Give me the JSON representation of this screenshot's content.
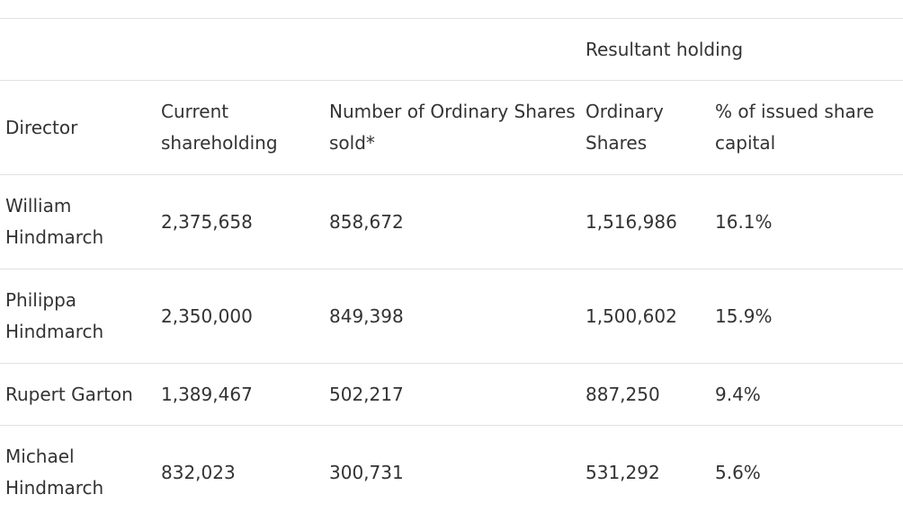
{
  "table": {
    "group_header": {
      "label": "Resultant holding"
    },
    "headers": {
      "director": "Director",
      "current": "Current shareholding",
      "sold": "Number of Ordinary Shares sold*",
      "ordinary": "Ordinary Shares",
      "pct": "% of issued share capital"
    },
    "rows": [
      {
        "director": "William Hindmarch",
        "current": "2,375,658",
        "sold": "858,672",
        "ordinary": "1,516,986",
        "pct": "16.1%"
      },
      {
        "director": "Philippa Hindmarch",
        "current": "2,350,000",
        "sold": "849,398",
        "ordinary": "1,500,602",
        "pct": "15.9%"
      },
      {
        "director": "Rupert Garton",
        "current": "1,389,467",
        "sold": "502,217",
        "ordinary": "887,250",
        "pct": "9.4%"
      },
      {
        "director": "Michael Hindmarch",
        "current": "832,023",
        "sold": "300,731",
        "ordinary": "531,292",
        "pct": "5.6%"
      }
    ]
  }
}
